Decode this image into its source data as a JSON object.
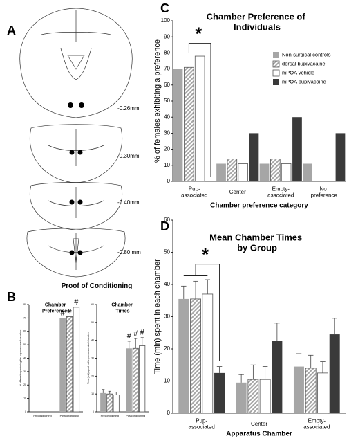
{
  "panels": {
    "a": {
      "letter": "A",
      "levels": [
        "-0.26mm",
        "-0.30mm",
        "-0.40mm",
        "-0.80 mm"
      ]
    }
  },
  "chart_data": [
    {
      "type": "bar",
      "letter": "C",
      "title": "Chamber Preference of Individuals",
      "ylabel": "% of females exhibiting a preference",
      "xlabel": "Chamber preference category",
      "categories": [
        "Pup-associated",
        "Center",
        "Empty-associated",
        "No preference"
      ],
      "ylim": [
        0,
        100
      ],
      "yticks": [
        0,
        10,
        20,
        30,
        40,
        50,
        60,
        70,
        80,
        90,
        100
      ],
      "legend": "upper right",
      "annotation": "*",
      "series": [
        {
          "name": "Non-surgical controls",
          "color": "#a6a6a6",
          "values": [
            70,
            11,
            11,
            11
          ]
        },
        {
          "name": "dorsal bupivacaine",
          "color": "#a6a6a6",
          "hatch": true,
          "values": [
            71,
            14,
            14,
            0
          ]
        },
        {
          "name": "mPOA vehicle",
          "color": "#ffffff",
          "values": [
            78,
            11,
            11,
            0
          ]
        },
        {
          "name": "mPOA bupivacaine",
          "color": "#3a3a3a",
          "values": [
            0,
            30,
            40,
            30
          ]
        }
      ]
    },
    {
      "type": "bar",
      "letter": "D",
      "title": "Mean Chamber Times by Group",
      "ylabel": "Time (min) spent in each chamber",
      "xlabel": "Apparatus Chamber",
      "categories": [
        "Pup-associated",
        "Center",
        "Empty-associated"
      ],
      "ylim": [
        0,
        60
      ],
      "yticks": [
        0,
        10,
        20,
        30,
        40,
        50,
        60
      ],
      "annotation": "*",
      "series": [
        {
          "color": "#a6a6a6",
          "values": [
            35.5,
            9.5,
            14.5
          ],
          "errors": [
            4,
            2.5,
            4
          ]
        },
        {
          "color": "#a6a6a6",
          "hatch": true,
          "values": [
            35.5,
            10.5,
            14
          ],
          "errors": [
            5.5,
            4.5,
            4
          ]
        },
        {
          "color": "#ffffff",
          "values": [
            37,
            10.5,
            12.5
          ],
          "errors": [
            4.5,
            4,
            3.5
          ]
        },
        {
          "color": "#3a3a3a",
          "values": [
            12.5,
            22.5,
            24.5
          ],
          "errors": [
            2,
            5.5,
            5
          ]
        }
      ]
    },
    {
      "type": "bar",
      "letter": "B",
      "title": "Proof of Conditioning",
      "subtitle": "Chamber Preferences",
      "ylabel": "% of females preferring the pup-associated chamber",
      "categories": [
        "Preconditioning",
        "Postconditioning"
      ],
      "ylim": [
        0,
        80
      ],
      "yticks": [
        0,
        10,
        20,
        30,
        40,
        50,
        60,
        70,
        80
      ],
      "annotation": "#",
      "series": [
        {
          "color": "#a6a6a6",
          "values": [
            0,
            70
          ]
        },
        {
          "color": "#a6a6a6",
          "hatch": true,
          "values": [
            0,
            71
          ]
        },
        {
          "color": "#ffffff",
          "values": [
            0,
            78
          ]
        }
      ]
    },
    {
      "type": "bar",
      "subtitle": "Chamber Times",
      "ylabel": "Time (min) spent in the pup-associated chamber",
      "categories": [
        "Preconditioning",
        "Postconditioning"
      ],
      "ylim": [
        0,
        60
      ],
      "yticks": [
        0,
        10,
        20,
        30,
        40,
        50,
        60
      ],
      "annotation": "#",
      "series": [
        {
          "color": "#a6a6a6",
          "values": [
            10.5,
            35.5
          ],
          "errors": [
            2,
            4
          ]
        },
        {
          "color": "#a6a6a6",
          "hatch": true,
          "values": [
            10,
            35.5
          ],
          "errors": [
            1.5,
            5.5
          ]
        },
        {
          "color": "#ffffff",
          "values": [
            9.5,
            37
          ],
          "errors": [
            1.5,
            4.5
          ]
        }
      ]
    }
  ]
}
